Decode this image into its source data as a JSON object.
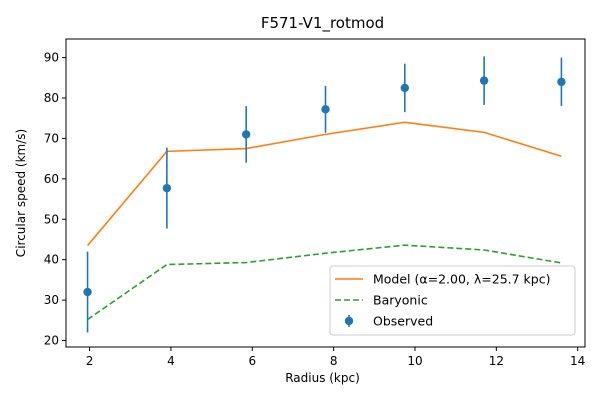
{
  "chart_data": {
    "type": "line",
    "title": "F571-V1_rotmod",
    "xlabel": "Radius (kpc)",
    "ylabel": "Circular speed (km/s)",
    "xlim": [
      1.42,
      14.18
    ],
    "ylim": [
      18.4,
      94.6
    ],
    "xticks": [
      2,
      4,
      6,
      8,
      10,
      12,
      14
    ],
    "yticks": [
      20,
      30,
      40,
      50,
      60,
      70,
      80,
      90
    ],
    "grid": false,
    "legend_position": "lower right",
    "x": [
      1.95,
      3.9,
      5.85,
      7.8,
      9.75,
      11.7,
      13.6
    ],
    "series": [
      {
        "name": "Model (α=2.00, λ=25.7 kpc)",
        "kind": "line",
        "color": "#ff7f0e",
        "dash": "solid",
        "values": [
          43.5,
          66.8,
          67.5,
          71.0,
          74.0,
          71.5,
          65.6
        ]
      },
      {
        "name": "Baryonic",
        "kind": "line",
        "color": "#2ca02c",
        "dash": "dashed",
        "values": [
          25.2,
          38.8,
          39.3,
          41.6,
          43.6,
          42.4,
          39.2
        ]
      },
      {
        "name": "Observed",
        "kind": "errorbar",
        "color": "#1f77b4",
        "values": [
          32.0,
          57.7,
          71.0,
          77.2,
          82.5,
          84.3,
          84.0
        ],
        "errors": [
          10.0,
          10.0,
          7.0,
          5.8,
          6.0,
          6.0,
          6.0
        ]
      }
    ]
  }
}
